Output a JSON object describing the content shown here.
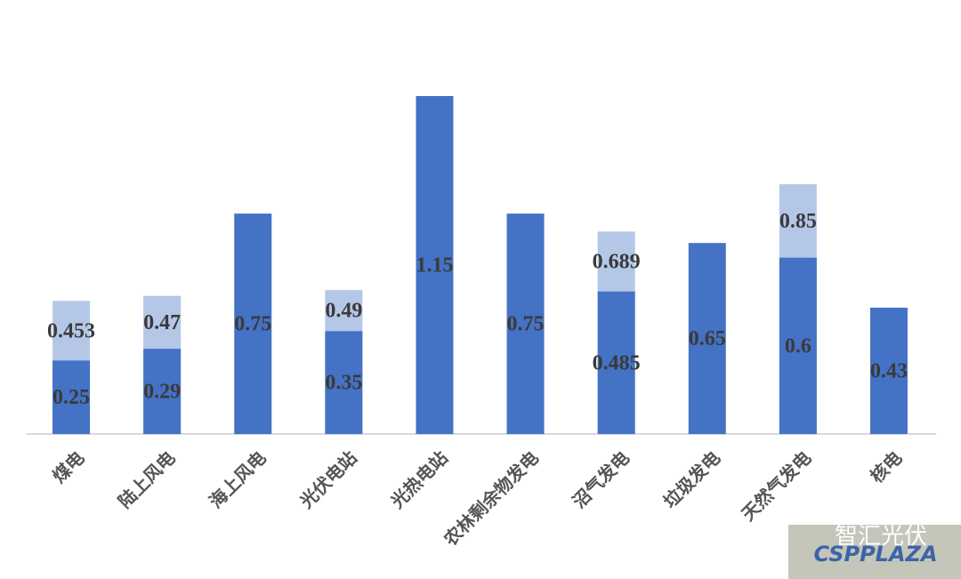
{
  "chart_data": {
    "type": "bar",
    "categories": [
      "煤电",
      "陆上风电",
      "海上风电",
      "光伏电站",
      "光热电站",
      "农林剩余物发电",
      "沼气发电",
      "垃圾发电",
      "天然气发电",
      "核电"
    ],
    "series": [
      {
        "color": "#4472c4",
        "values": [
          0.25,
          0.29,
          0.75,
          0.35,
          1.15,
          0.75,
          0.485,
          0.65,
          0.6,
          0.43
        ]
      },
      {
        "color": "#b4c7e7",
        "values": [
          0.453,
          0.47,
          null,
          0.49,
          null,
          null,
          0.689,
          null,
          0.85,
          null
        ]
      }
    ],
    "watermark": [
      "智汇光伏",
      "CSPPLAZA"
    ]
  }
}
